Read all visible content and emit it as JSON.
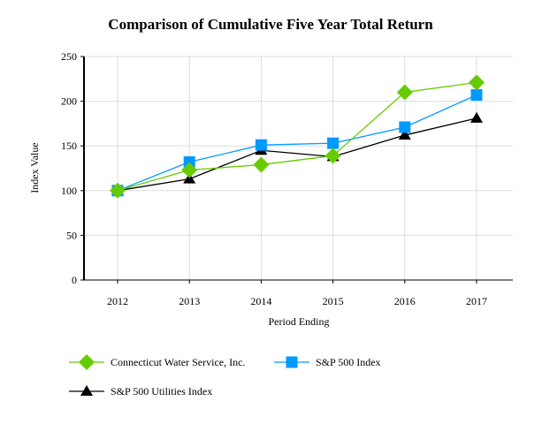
{
  "chart_data": {
    "type": "line",
    "title": "Comparison of Cumulative Five Year Total Return",
    "xlabel": "Period Ending",
    "ylabel": "Index Value",
    "categories": [
      "2012",
      "2013",
      "2014",
      "2015",
      "2016",
      "2017"
    ],
    "ylim": [
      0,
      250
    ],
    "yticks": [
      "0",
      "50",
      "100",
      "150",
      "200",
      "250"
    ],
    "grid": true,
    "legend_position": "bottom",
    "series": [
      {
        "name": "Connecticut Water Service, Inc.",
        "color": "#66cc00",
        "marker": "diamond",
        "values": [
          100,
          123,
          129,
          139,
          210,
          221
        ]
      },
      {
        "name": "S&P 500 Index",
        "color": "#0099ff",
        "marker": "square",
        "values": [
          100,
          132,
          151,
          153,
          171,
          207
        ]
      },
      {
        "name": "S&P 500 Utilities Index",
        "color": "#000000",
        "marker": "triangle",
        "values": [
          100,
          113,
          145,
          138,
          162,
          181
        ]
      }
    ]
  }
}
